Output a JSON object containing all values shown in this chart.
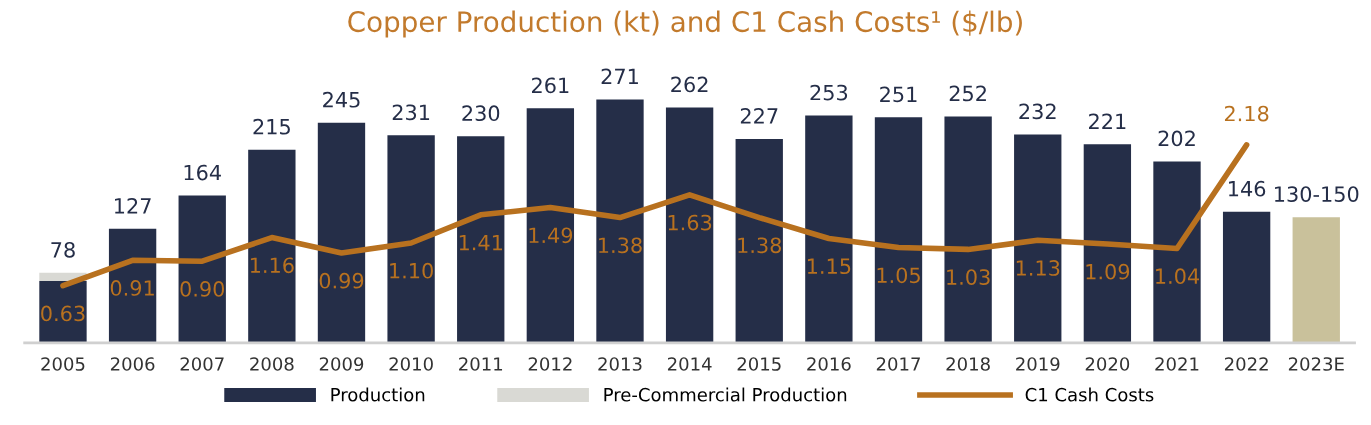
{
  "chart_data": {
    "type": "bar",
    "title": "Copper Production (kt) and C1 Cash Costs¹ ($/lb)",
    "categories": [
      "2005",
      "2006",
      "2007",
      "2008",
      "2009",
      "2010",
      "2011",
      "2012",
      "2013",
      "2014",
      "2015",
      "2016",
      "2017",
      "2018",
      "2019",
      "2020",
      "2021",
      "2022",
      "2023E"
    ],
    "stacked": true,
    "series": [
      {
        "name": "Production",
        "color": "#252e48",
        "value_labels": [
          null,
          "127",
          "164",
          "215",
          "245",
          "231",
          "230",
          "261",
          "271",
          "262",
          "227",
          "253",
          "251",
          "252",
          "232",
          "221",
          "202",
          "146",
          "130-150"
        ],
        "colors": [
          "#252e48",
          "#252e48",
          "#252e48",
          "#252e48",
          "#252e48",
          "#252e48",
          "#252e48",
          "#252e48",
          "#252e48",
          "#252e48",
          "#252e48",
          "#252e48",
          "#252e48",
          "#252e48",
          "#252e48",
          "#252e48",
          "#252e48",
          "#252e48",
          "#c9c19b"
        ],
        "values": [
          69,
          127,
          164,
          215,
          245,
          231,
          230,
          261,
          271,
          262,
          227,
          253,
          251,
          252,
          232,
          221,
          202,
          146,
          140
        ]
      },
      {
        "name": "Pre-Commercial Production",
        "color": "#d9d9d4",
        "values": [
          9,
          null,
          null,
          null,
          null,
          null,
          null,
          null,
          null,
          null,
          null,
          null,
          null,
          null,
          null,
          null,
          null,
          null,
          null
        ]
      },
      {
        "name": "C1 Cash Costs",
        "type": "line",
        "axis": "y2",
        "color": "#b8711f",
        "values": [
          0.63,
          0.91,
          0.9,
          1.16,
          0.99,
          1.1,
          1.41,
          1.49,
          1.38,
          1.63,
          1.38,
          1.15,
          1.05,
          1.03,
          1.13,
          1.09,
          1.04,
          2.18,
          null
        ],
        "value_labels": [
          "0.63",
          "0.91",
          "0.90",
          "1.16",
          "0.99",
          "1.10",
          "1.41",
          "1.49",
          "1.38",
          "1.63",
          "1.38",
          "1.15",
          "1.05",
          "1.03",
          "1.13",
          "1.09",
          "1.04",
          "2.18",
          null
        ]
      }
    ],
    "totals": [
      "78",
      null,
      null,
      null,
      null,
      null,
      null,
      null,
      null,
      null,
      null,
      null,
      null,
      null,
      null,
      null,
      null,
      null,
      null
    ],
    "tick_labels": "x",
    "grid": false,
    "legend": "bottom"
  }
}
